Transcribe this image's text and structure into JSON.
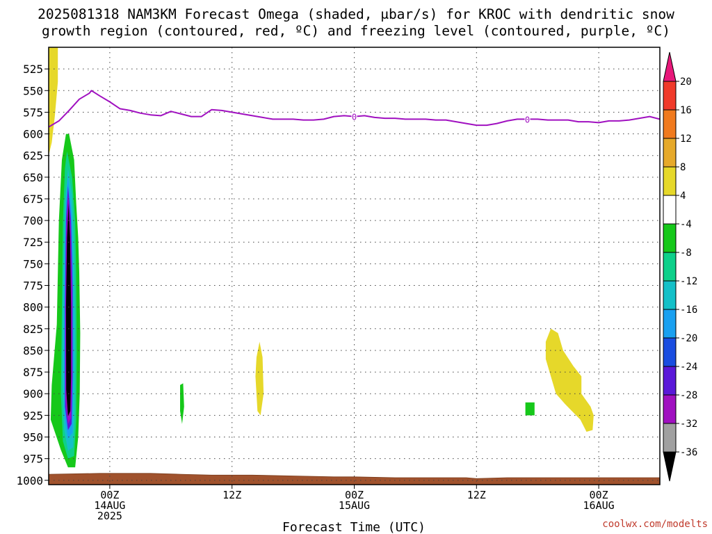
{
  "title_line1": "2025081318 NAM3KM Forecast Omega (shaded, μbar/s) for KROC with dendritic snow",
  "title_line2": "growth region (contoured, red, ºC) and freezing level (contoured, purple, ºC)",
  "credit": "coolwx.com/modelts",
  "chart_data": {
    "type": "heatmap",
    "title": "2025081318 NAM3KM Forecast Omega (shaded, μbar/s) for KROC with dendritic snow growth region (contoured, red, ºC) and freezing level (contoured, purple, ºC)",
    "xlabel": "Forecast Time (UTC)",
    "ylabel": "",
    "x_range_hours": [
      0,
      60
    ],
    "y_range_hPa": [
      500,
      1005
    ],
    "y_scale": "pressure (inverted)",
    "y_ticks": [
      "525",
      "550",
      "575",
      "600",
      "625",
      "650",
      "675",
      "700",
      "725",
      "750",
      "775",
      "800",
      "825",
      "850",
      "875",
      "900",
      "925",
      "950",
      "975",
      "1000"
    ],
    "x_ticks": [
      {
        "hour": 6,
        "line1": "00Z",
        "line2": "14AUG",
        "line3": "2025"
      },
      {
        "hour": 18,
        "line1": "12Z",
        "line2": "",
        "line3": ""
      },
      {
        "hour": 30,
        "line1": "00Z",
        "line2": "15AUG",
        "line3": ""
      },
      {
        "hour": 42,
        "line1": "12Z",
        "line2": "",
        "line3": ""
      },
      {
        "hour": 54,
        "line1": "00Z",
        "line2": "16AUG",
        "line3": ""
      }
    ],
    "grid": true,
    "colorbar": {
      "labels": [
        "20",
        "16",
        "12",
        "8",
        "4",
        "-4",
        "-8",
        "-12",
        "-16",
        "-20",
        "-24",
        "-28",
        "-32",
        "-36"
      ],
      "colors": [
        "#e8187a",
        "#f03a2a",
        "#f07a1e",
        "#e6a92a",
        "#e6d82a",
        "#ffffff",
        "#16c81a",
        "#0ed08a",
        "#14c0c8",
        "#1aa0f0",
        "#1a4de0",
        "#5a18d8",
        "#a010c0",
        "#a0a0a0",
        "#000000"
      ]
    },
    "freezing_level": {
      "color": "#a010c0",
      "points": [
        [
          0,
          592
        ],
        [
          1,
          585
        ],
        [
          2,
          573
        ],
        [
          3,
          560
        ],
        [
          4,
          553
        ],
        [
          4.2,
          550
        ],
        [
          5,
          556
        ],
        [
          6,
          563
        ],
        [
          7,
          571
        ],
        [
          8,
          573
        ],
        [
          9,
          576
        ],
        [
          10,
          578
        ],
        [
          11,
          579
        ],
        [
          12,
          574
        ],
        [
          13,
          577
        ],
        [
          14,
          580
        ],
        [
          15,
          580
        ],
        [
          16,
          572
        ],
        [
          17,
          573
        ],
        [
          18,
          575
        ],
        [
          19,
          577
        ],
        [
          20,
          579
        ],
        [
          21,
          581
        ],
        [
          22,
          583
        ],
        [
          23,
          583
        ],
        [
          24,
          583
        ],
        [
          25,
          584
        ],
        [
          26,
          584
        ],
        [
          27,
          583
        ],
        [
          28,
          580
        ],
        [
          29,
          579
        ],
        [
          30,
          580
        ],
        [
          31,
          579
        ],
        [
          32,
          581
        ],
        [
          33,
          582
        ],
        [
          34,
          582
        ],
        [
          35,
          583
        ],
        [
          36,
          583
        ],
        [
          37,
          583
        ],
        [
          38,
          584
        ],
        [
          39,
          584
        ],
        [
          40,
          586
        ],
        [
          41,
          588
        ],
        [
          42,
          590
        ],
        [
          43,
          590
        ],
        [
          44,
          588
        ],
        [
          45,
          585
        ],
        [
          46,
          583
        ],
        [
          47,
          583
        ],
        [
          48,
          583
        ],
        [
          49,
          584
        ],
        [
          50,
          584
        ],
        [
          51,
          584
        ],
        [
          52,
          586
        ],
        [
          53,
          586
        ],
        [
          54,
          587
        ],
        [
          55,
          585
        ],
        [
          56,
          585
        ],
        [
          57,
          584
        ],
        [
          58,
          582
        ],
        [
          59,
          580
        ],
        [
          60,
          583
        ]
      ],
      "labels": [
        {
          "hour": 30,
          "hPa": 580,
          "text": "0"
        },
        {
          "hour": 47,
          "hPa": 583,
          "text": "0"
        }
      ]
    },
    "omega_regions": [
      {
        "value_band": "4 to 8",
        "color": "#e6d82a",
        "polygon": [
          [
            0,
            500
          ],
          [
            0.9,
            500
          ],
          [
            0.9,
            540
          ],
          [
            0.6,
            580
          ],
          [
            0.3,
            610
          ],
          [
            0,
            625
          ]
        ]
      },
      {
        "value_band": "-8 to -4",
        "color": "#16c81a",
        "polygon": [
          [
            2,
            600
          ],
          [
            2.5,
            630
          ],
          [
            2.7,
            680
          ],
          [
            2.9,
            720
          ],
          [
            3,
            760
          ],
          [
            3.1,
            830
          ],
          [
            3.05,
            900
          ],
          [
            2.9,
            950
          ],
          [
            2.6,
            985
          ],
          [
            1.9,
            985
          ],
          [
            1.2,
            965
          ],
          [
            0.2,
            930
          ],
          [
            0.3,
            890
          ],
          [
            0.8,
            820
          ],
          [
            1.0,
            700
          ],
          [
            1.3,
            630
          ],
          [
            1.7,
            600
          ]
        ]
      },
      {
        "value_band": "-12 to -8",
        "color": "#0ed08a",
        "polygon": [
          [
            1.8,
            620
          ],
          [
            2.3,
            650
          ],
          [
            2.6,
            700
          ],
          [
            2.7,
            760
          ],
          [
            2.75,
            850
          ],
          [
            2.7,
            930
          ],
          [
            2.5,
            972
          ],
          [
            1.9,
            975
          ],
          [
            1.4,
            955
          ],
          [
            1.2,
            900
          ],
          [
            1.3,
            800
          ],
          [
            1.4,
            700
          ],
          [
            1.6,
            640
          ]
        ]
      },
      {
        "value_band": "-16 to -12",
        "color": "#14c0c8",
        "polygon": [
          [
            1.9,
            640
          ],
          [
            2.3,
            670
          ],
          [
            2.5,
            730
          ],
          [
            2.6,
            820
          ],
          [
            2.55,
            920
          ],
          [
            2.4,
            962
          ],
          [
            1.9,
            966
          ],
          [
            1.5,
            940
          ],
          [
            1.35,
            880
          ],
          [
            1.45,
            760
          ],
          [
            1.6,
            680
          ]
        ]
      },
      {
        "value_band": "-20 to -16",
        "color": "#1aa0f0",
        "polygon": [
          [
            1.9,
            650
          ],
          [
            2.25,
            690
          ],
          [
            2.4,
            760
          ],
          [
            2.45,
            860
          ],
          [
            2.35,
            945
          ],
          [
            1.9,
            952
          ],
          [
            1.55,
            925
          ],
          [
            1.5,
            850
          ],
          [
            1.55,
            740
          ],
          [
            1.7,
            680
          ]
        ]
      },
      {
        "value_band": "-28 to -24",
        "color": "#5a18d8",
        "polygon": [
          [
            1.9,
            660
          ],
          [
            2.2,
            700
          ],
          [
            2.35,
            780
          ],
          [
            2.35,
            880
          ],
          [
            2.25,
            935
          ],
          [
            1.9,
            942
          ],
          [
            1.6,
            915
          ],
          [
            1.6,
            800
          ],
          [
            1.7,
            700
          ]
        ]
      },
      {
        "value_band": "-32 to -28",
        "color": "#a010c0",
        "polygon": [
          [
            1.9,
            670
          ],
          [
            2.15,
            710
          ],
          [
            2.28,
            790
          ],
          [
            2.28,
            880
          ],
          [
            2.2,
            928
          ],
          [
            1.9,
            935
          ],
          [
            1.65,
            905
          ],
          [
            1.65,
            800
          ],
          [
            1.75,
            710
          ]
        ]
      },
      {
        "value_band": "< -36",
        "color": "#000000",
        "polygon": [
          [
            1.95,
            680
          ],
          [
            2.1,
            720
          ],
          [
            2.2,
            800
          ],
          [
            2.2,
            880
          ],
          [
            2.12,
            920
          ],
          [
            1.9,
            926
          ],
          [
            1.72,
            895
          ],
          [
            1.7,
            800
          ],
          [
            1.8,
            720
          ]
        ]
      },
      {
        "value_band": "-8 to -4",
        "color": "#16c81a",
        "polygon": [
          [
            12.9,
            890
          ],
          [
            13.2,
            888
          ],
          [
            13.3,
            915
          ],
          [
            13.1,
            935
          ],
          [
            12.9,
            920
          ]
        ]
      },
      {
        "value_band": "4 to 8",
        "color": "#e6d82a",
        "polygon": [
          [
            20.7,
            840
          ],
          [
            21,
            858
          ],
          [
            21.1,
            900
          ],
          [
            20.8,
            925
          ],
          [
            20.5,
            920
          ],
          [
            20.3,
            880
          ],
          [
            20.4,
            858
          ]
        ]
      },
      {
        "value_band": "-8 to -4",
        "color": "#16c81a",
        "polygon": [
          [
            46.8,
            910
          ],
          [
            47.7,
            910
          ],
          [
            47.7,
            925
          ],
          [
            46.8,
            925
          ]
        ]
      },
      {
        "value_band": "4 to 8",
        "color": "#e6d82a",
        "polygon": [
          [
            49.3,
            825
          ],
          [
            50,
            830
          ],
          [
            50.5,
            850
          ],
          [
            51.5,
            868
          ],
          [
            52.3,
            880
          ],
          [
            52.3,
            900
          ],
          [
            53.2,
            915
          ],
          [
            53.5,
            925
          ],
          [
            53.4,
            942
          ],
          [
            52.8,
            944
          ],
          [
            52.2,
            930
          ],
          [
            50.7,
            912
          ],
          [
            49.8,
            900
          ],
          [
            49.3,
            880
          ],
          [
            48.8,
            860
          ],
          [
            48.8,
            840
          ]
        ]
      }
    ],
    "terrain": {
      "color": "#a0522d",
      "surface_hPa": [
        [
          0,
          993
        ],
        [
          5,
          992
        ],
        [
          10,
          992
        ],
        [
          13,
          993
        ],
        [
          16,
          994
        ],
        [
          20,
          994
        ],
        [
          24,
          995
        ],
        [
          28,
          996
        ],
        [
          30,
          996
        ],
        [
          34,
          997
        ],
        [
          38,
          997
        ],
        [
          41,
          997
        ],
        [
          42,
          998
        ],
        [
          45,
          997
        ],
        [
          50,
          997
        ],
        [
          55,
          997
        ],
        [
          60,
          997
        ]
      ]
    }
  }
}
